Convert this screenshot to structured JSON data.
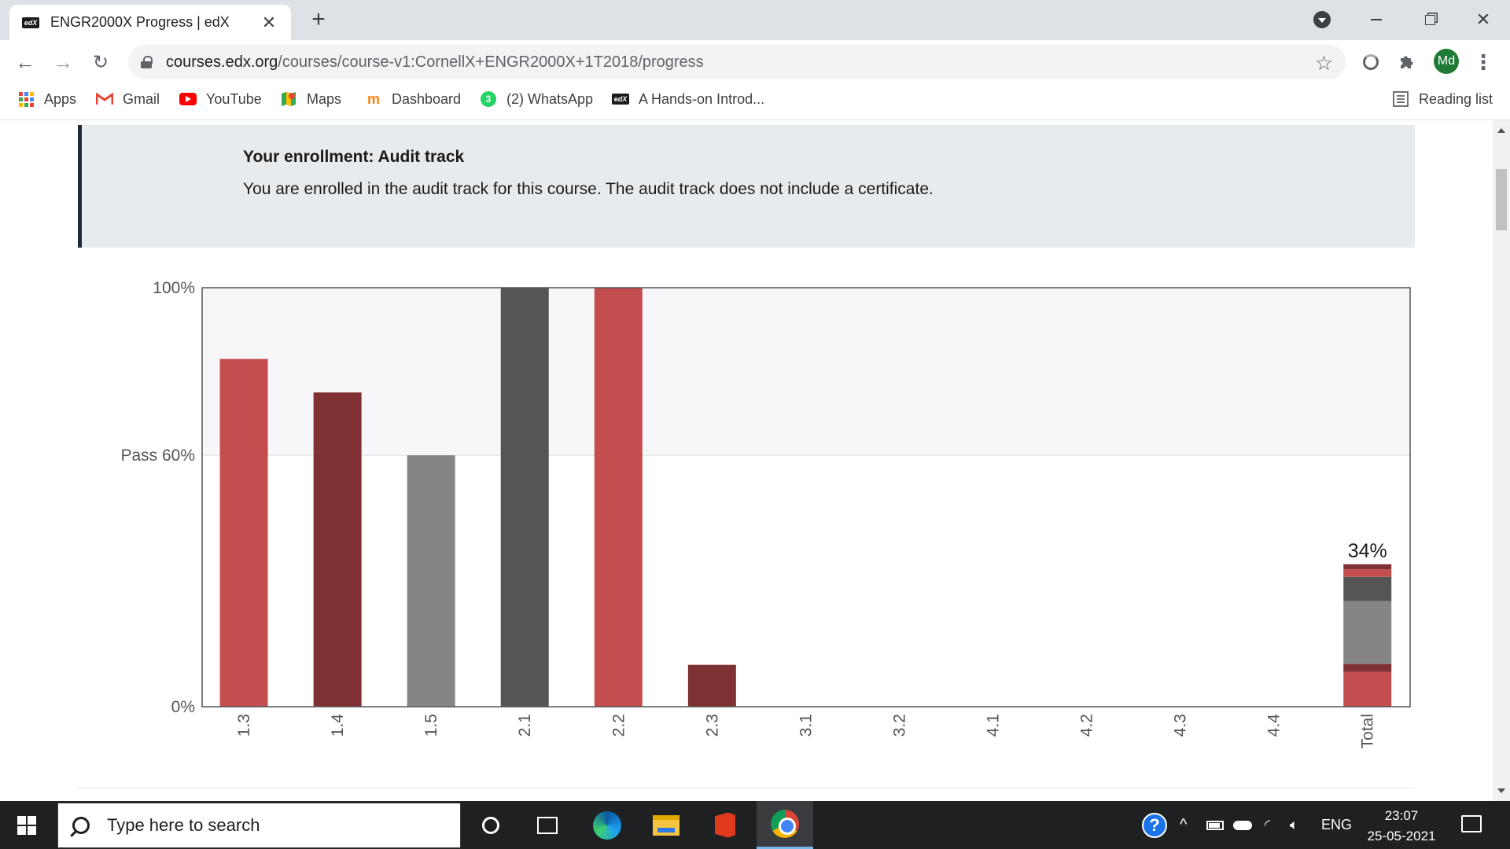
{
  "browser": {
    "tab": {
      "title": "ENGR2000X Progress | edX",
      "favicon_text": "edX",
      "close": "✕"
    },
    "new_tab": "+",
    "url_host": "courses.edx.org",
    "url_path": "/courses/course-v1:CornellX+ENGR2000X+1T2018/progress",
    "avatar_initials": "Md",
    "bookmarks": [
      {
        "label": "Apps",
        "icon": "apps-grid-icon"
      },
      {
        "label": "Gmail",
        "icon": "gmail-icon"
      },
      {
        "label": "YouTube",
        "icon": "youtube-icon"
      },
      {
        "label": "Maps",
        "icon": "maps-icon"
      },
      {
        "label": "Dashboard",
        "icon": "moodle-icon"
      },
      {
        "label": "(2) WhatsApp",
        "icon": "whatsapp-icon",
        "badge": "3"
      },
      {
        "label": "A Hands-on Introd...",
        "icon": "edx-icon"
      }
    ],
    "reading_list": "Reading list"
  },
  "enrollment": {
    "title": "Your enrollment: Audit track",
    "message": "You are enrolled in the audit track for this course. The audit track does not include a certificate."
  },
  "chart_data": {
    "type": "bar",
    "categories": [
      "1.3",
      "1.4",
      "1.5",
      "2.1",
      "2.2",
      "2.3",
      "3.1",
      "3.2",
      "4.1",
      "4.2",
      "4.3",
      "4.4"
    ],
    "values": [
      83,
      75,
      60,
      100,
      100,
      10,
      0,
      0,
      0,
      0,
      0,
      0
    ],
    "bar_colors": [
      "#c44d4f",
      "#7f3033",
      "#858585",
      "#555555",
      "#c44d4f",
      "#7f3033",
      "#c44d4f",
      "#7f3033",
      "#858585",
      "#555555",
      "#c44d4f",
      "#7f3033"
    ],
    "y_ticks": [
      {
        "value": 100,
        "label": "100%"
      },
      {
        "value": 60,
        "label": "Pass 60%"
      },
      {
        "value": 0,
        "label": "0%"
      }
    ],
    "ylim": [
      0,
      100
    ],
    "pass_threshold": 60,
    "total": {
      "label": "Total",
      "value_label": "34%",
      "segments": [
        {
          "value": 8.3,
          "color": "#c44d4f"
        },
        {
          "value": 1.9,
          "color": "#7f3033"
        },
        {
          "value": 15.0,
          "color": "#858585"
        },
        {
          "value": 5.8,
          "color": "#555555"
        },
        {
          "value": 1.8,
          "color": "#c44d4f"
        },
        {
          "value": 1.2,
          "color": "#7f3033"
        }
      ]
    },
    "colors": {
      "above_pass_band": "#f7f7f9",
      "axis": "#555555",
      "pass_line": "#e0e0e0"
    }
  },
  "taskbar": {
    "search_placeholder": "Type here to search",
    "language": "ENG",
    "time": "23:07",
    "date": "25-05-2021"
  }
}
